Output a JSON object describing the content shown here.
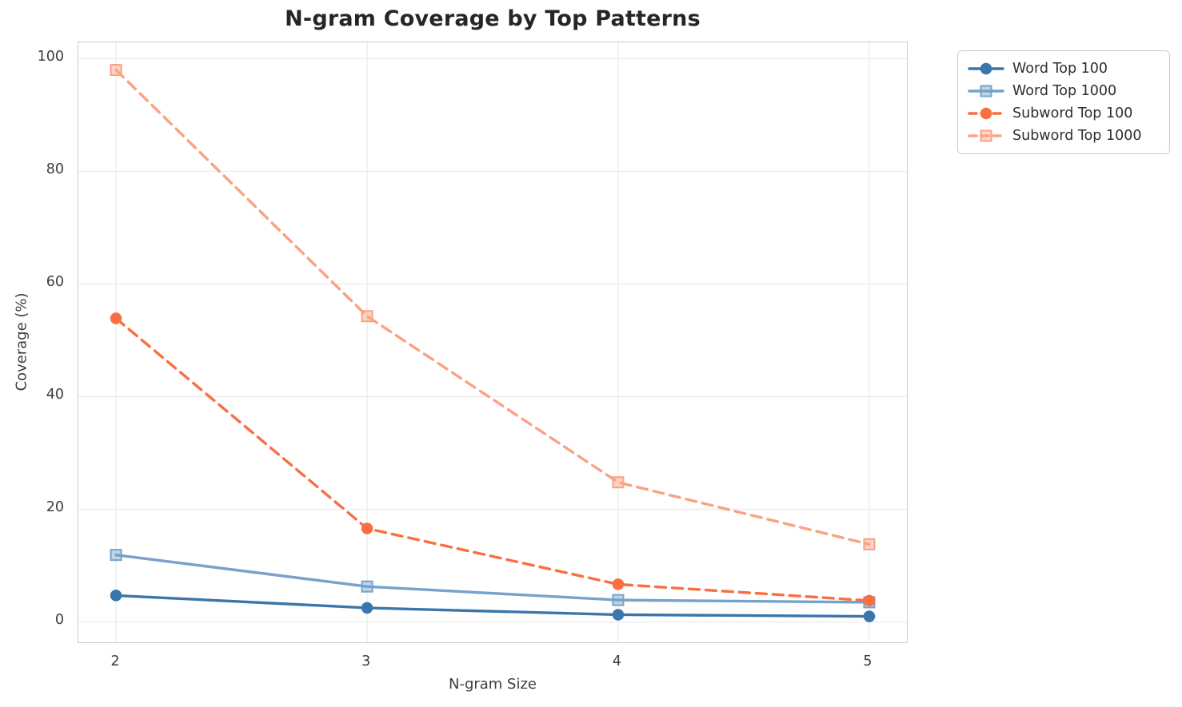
{
  "chart_data": {
    "type": "line",
    "title": "N-gram Coverage by Top Patterns",
    "xlabel": "N-gram Size",
    "ylabel": "Coverage (%)",
    "x": [
      2,
      3,
      4,
      5
    ],
    "xticks": [
      2,
      3,
      4,
      5
    ],
    "yticks": [
      0,
      20,
      40,
      60,
      80,
      100
    ],
    "xlim": [
      1.85,
      5.15
    ],
    "ylim": [
      -3.6,
      102.9
    ],
    "grid": true,
    "legend_position": "outside-top-right",
    "series": [
      {
        "name": "Word Top 100",
        "values": [
          4.7,
          2.5,
          1.3,
          1.0
        ],
        "color": "#3b76ab",
        "line_style": "solid",
        "marker": "circle"
      },
      {
        "name": "Word Top 1000",
        "values": [
          11.9,
          6.3,
          3.9,
          3.5
        ],
        "color": "#76a2cb",
        "line_style": "solid",
        "marker": "square"
      },
      {
        "name": "Subword Top 100",
        "values": [
          53.9,
          16.6,
          6.7,
          3.8
        ],
        "color": "#f96f42",
        "line_style": "dashed",
        "marker": "circle"
      },
      {
        "name": "Subword Top 1000",
        "values": [
          98.0,
          54.3,
          24.8,
          13.8
        ],
        "color": "#fba184",
        "line_style": "dashed",
        "marker": "square"
      }
    ]
  }
}
